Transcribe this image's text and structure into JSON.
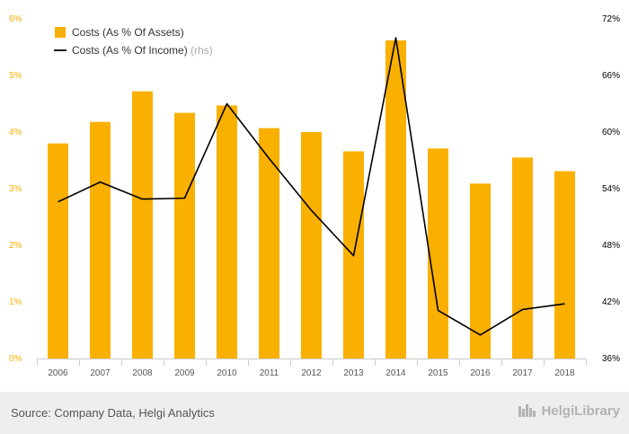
{
  "chart_data": {
    "type": "bar",
    "categories": [
      "2006",
      "2007",
      "2008",
      "2009",
      "2010",
      "2011",
      "2012",
      "2013",
      "2014",
      "2015",
      "2016",
      "2017",
      "2018"
    ],
    "series": [
      {
        "name": "Costs (As % Of Assets)",
        "type": "bar",
        "axis": "left",
        "values": [
          3.8,
          4.18,
          4.72,
          4.34,
          4.47,
          4.07,
          4.0,
          3.66,
          5.62,
          3.71,
          3.09,
          3.55,
          3.31
        ]
      },
      {
        "name": "Costs (As % Of Income)",
        "name_suffix": "(rhs)",
        "type": "line",
        "axis": "right",
        "values": [
          52.6,
          54.7,
          52.9,
          53.0,
          63.0,
          57.2,
          51.7,
          46.9,
          70.0,
          41.1,
          38.5,
          41.2,
          41.8
        ]
      }
    ],
    "y_left": {
      "ticks": [
        "0%",
        "1%",
        "2%",
        "3%",
        "4%",
        "5%",
        "6%"
      ],
      "min": 0,
      "max": 6
    },
    "y_right": {
      "ticks": [
        "36%",
        "42%",
        "48%",
        "54%",
        "60%",
        "66%",
        "72%"
      ],
      "min": 36,
      "max": 72
    },
    "legend": "top-left",
    "grid": false,
    "colors": {
      "bar": "#F9B000",
      "line": "#000000",
      "left_axis_text": "#F9B000",
      "right_axis_text": "#000000",
      "x_axis_text": "#555555"
    }
  },
  "footer": {
    "source": "Source: Company Data, Helgi Analytics",
    "logo_text": "HelgiLibrary"
  }
}
